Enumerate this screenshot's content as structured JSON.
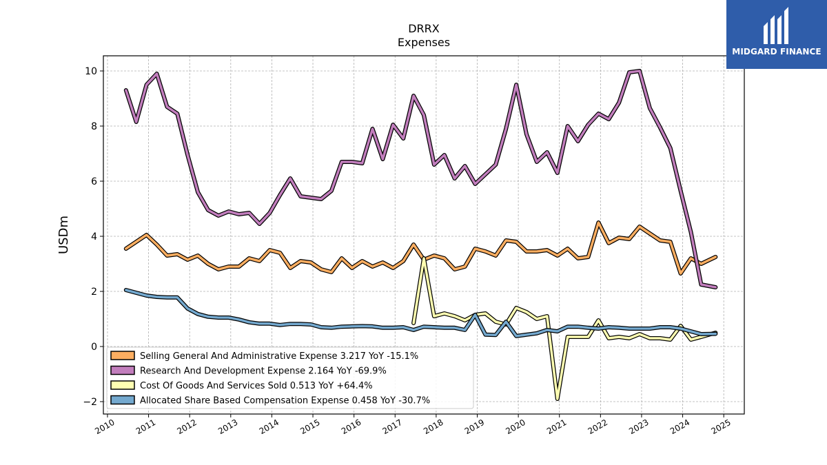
{
  "brand": {
    "name": "MIDGARD FINANCE",
    "color": "#2f5daa"
  },
  "chart_data": {
    "type": "line",
    "title": "DRRX",
    "subtitle": "Expenses",
    "ylabel": "USDm",
    "xlabel": "",
    "xlim": [
      2009.9,
      2025.5
    ],
    "ylim": [
      -2.45,
      10.55
    ],
    "xticks": [
      2010,
      2011,
      2012,
      2013,
      2014,
      2015,
      2016,
      2017,
      2018,
      2019,
      2020,
      2021,
      2022,
      2023,
      2024,
      2025
    ],
    "yticks": [
      -2,
      0,
      2,
      4,
      6,
      8,
      10
    ],
    "grid": true,
    "legend_position": "lower-left",
    "series": [
      {
        "name": "Selling General And Administrative Expense",
        "legend_label": "Selling General And Administrative Expense  3.217 YoY -15.1%",
        "color": "#fdae61",
        "x": [
          2010.45,
          2010.7,
          2010.95,
          2011.2,
          2011.45,
          2011.7,
          2011.95,
          2012.2,
          2012.45,
          2012.7,
          2012.95,
          2013.2,
          2013.45,
          2013.7,
          2013.95,
          2014.2,
          2014.45,
          2014.7,
          2014.95,
          2015.2,
          2015.45,
          2015.7,
          2015.95,
          2016.2,
          2016.45,
          2016.7,
          2016.95,
          2017.2,
          2017.45,
          2017.7,
          2017.95,
          2018.2,
          2018.45,
          2018.7,
          2018.95,
          2019.2,
          2019.45,
          2019.7,
          2019.95,
          2020.2,
          2020.45,
          2020.7,
          2020.95,
          2021.2,
          2021.45,
          2021.7,
          2021.95,
          2022.2,
          2022.45,
          2022.7,
          2022.95,
          2023.2,
          2023.45,
          2023.7,
          2023.95,
          2024.2,
          2024.45,
          2024.8
        ],
        "values": [
          3.55,
          3.8,
          4.05,
          3.7,
          3.3,
          3.35,
          3.15,
          3.3,
          3.0,
          2.8,
          2.9,
          2.9,
          3.2,
          3.1,
          3.5,
          3.4,
          2.85,
          3.1,
          3.05,
          2.8,
          2.7,
          3.2,
          2.85,
          3.1,
          2.9,
          3.05,
          2.85,
          3.1,
          3.7,
          3.15,
          3.3,
          3.2,
          2.8,
          2.9,
          3.55,
          3.45,
          3.3,
          3.85,
          3.8,
          3.45,
          3.45,
          3.5,
          3.3,
          3.55,
          3.2,
          3.25,
          4.5,
          3.75,
          3.95,
          3.9,
          4.35,
          4.1,
          3.85,
          3.8,
          2.65,
          3.2,
          3.0,
          3.25
        ]
      },
      {
        "name": "Research And Development Expense",
        "legend_label": "Research And Development Expense  2.164 YoY -69.9%",
        "color": "#c27ebd",
        "x": [
          2010.45,
          2010.7,
          2010.95,
          2011.2,
          2011.45,
          2011.7,
          2011.95,
          2012.2,
          2012.45,
          2012.7,
          2012.95,
          2013.2,
          2013.45,
          2013.7,
          2013.95,
          2014.2,
          2014.45,
          2014.7,
          2014.95,
          2015.2,
          2015.45,
          2015.7,
          2015.95,
          2016.2,
          2016.45,
          2016.7,
          2016.95,
          2017.2,
          2017.45,
          2017.7,
          2017.95,
          2018.2,
          2018.45,
          2018.7,
          2018.95,
          2019.2,
          2019.45,
          2019.7,
          2019.95,
          2020.2,
          2020.45,
          2020.7,
          2020.95,
          2021.2,
          2021.45,
          2021.7,
          2021.95,
          2022.2,
          2022.45,
          2022.7,
          2022.95,
          2023.2,
          2023.45,
          2023.7,
          2023.95,
          2024.2,
          2024.45,
          2024.8
        ],
        "values": [
          9.3,
          8.15,
          9.5,
          9.9,
          8.7,
          8.45,
          6.95,
          5.6,
          4.95,
          4.75,
          4.9,
          4.8,
          4.85,
          4.45,
          4.85,
          5.5,
          6.1,
          5.45,
          5.4,
          5.35,
          5.65,
          6.7,
          6.7,
          6.65,
          7.9,
          6.8,
          8.05,
          7.55,
          9.1,
          8.4,
          6.6,
          6.95,
          6.1,
          6.55,
          5.9,
          6.25,
          6.6,
          7.9,
          9.5,
          7.7,
          6.7,
          7.05,
          6.3,
          8.0,
          7.45,
          8.05,
          8.45,
          8.25,
          8.85,
          9.95,
          10.0,
          8.65,
          7.95,
          7.2,
          5.65,
          4.15,
          2.25,
          2.15
        ]
      },
      {
        "name": "Cost Of Goods And Services Sold",
        "legend_label": "Cost Of Goods And Services Sold  0.513 YoY +64.4%",
        "color": "#ffffb2",
        "x": [
          2017.45,
          2017.7,
          2017.95,
          2018.2,
          2018.45,
          2018.7,
          2018.95,
          2019.2,
          2019.45,
          2019.7,
          2019.95,
          2020.2,
          2020.45,
          2020.7,
          2020.95,
          2021.2,
          2021.45,
          2021.7,
          2021.95,
          2022.2,
          2022.45,
          2022.7,
          2022.95,
          2023.2,
          2023.45,
          2023.7,
          2023.95,
          2024.2,
          2024.45,
          2024.8
        ],
        "values": [
          0.85,
          3.2,
          1.1,
          1.2,
          1.1,
          0.95,
          1.15,
          1.2,
          0.9,
          0.8,
          1.4,
          1.25,
          1.0,
          1.1,
          -1.9,
          0.35,
          0.35,
          0.35,
          0.95,
          0.3,
          0.35,
          0.3,
          0.45,
          0.3,
          0.3,
          0.25,
          0.75,
          0.25,
          0.35,
          0.5
        ]
      },
      {
        "name": "Allocated Share Based Compensation Expense",
        "legend_label": "Allocated Share Based Compensation Expense  0.458 YoY -30.7%",
        "color": "#74a9cf",
        "x": [
          2010.45,
          2010.7,
          2010.95,
          2011.2,
          2011.45,
          2011.7,
          2011.95,
          2012.2,
          2012.45,
          2012.7,
          2012.95,
          2013.2,
          2013.45,
          2013.7,
          2013.95,
          2014.2,
          2014.45,
          2014.7,
          2014.95,
          2015.2,
          2015.45,
          2015.7,
          2015.95,
          2016.2,
          2016.45,
          2016.7,
          2016.95,
          2017.2,
          2017.45,
          2017.7,
          2017.95,
          2018.2,
          2018.45,
          2018.7,
          2018.95,
          2019.2,
          2019.45,
          2019.7,
          2019.95,
          2020.2,
          2020.45,
          2020.7,
          2020.95,
          2021.2,
          2021.45,
          2021.7,
          2021.95,
          2022.2,
          2022.45,
          2022.7,
          2022.95,
          2023.2,
          2023.45,
          2023.7,
          2023.95,
          2024.2,
          2024.45,
          2024.8
        ],
        "values": [
          2.05,
          1.95,
          1.85,
          1.8,
          1.78,
          1.78,
          1.38,
          1.18,
          1.08,
          1.05,
          1.05,
          0.98,
          0.88,
          0.83,
          0.83,
          0.78,
          0.82,
          0.82,
          0.8,
          0.7,
          0.68,
          0.72,
          0.73,
          0.74,
          0.73,
          0.68,
          0.68,
          0.7,
          0.6,
          0.72,
          0.7,
          0.68,
          0.68,
          0.6,
          1.15,
          0.43,
          0.42,
          0.9,
          0.38,
          0.43,
          0.48,
          0.6,
          0.55,
          0.72,
          0.72,
          0.68,
          0.65,
          0.7,
          0.68,
          0.65,
          0.65,
          0.65,
          0.7,
          0.7,
          0.65,
          0.55,
          0.45,
          0.46
        ]
      }
    ]
  }
}
